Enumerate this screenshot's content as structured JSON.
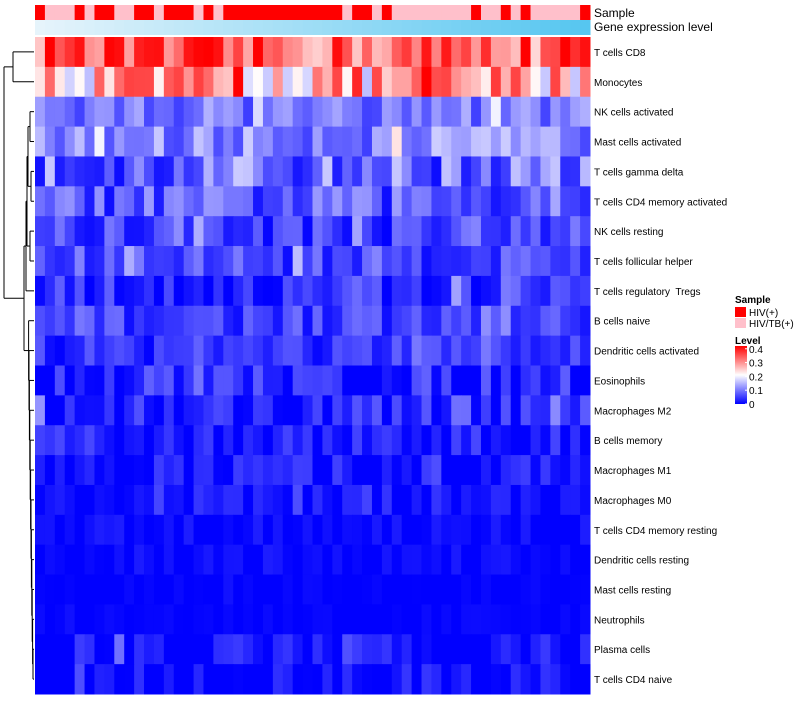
{
  "colors": {
    "hiv_pos": "#ff0000",
    "hiv_tb": "#ffc0cb",
    "level_low": "#0000ff",
    "level_mid": "#ffffff",
    "level_high": "#ff0000",
    "gene_low": "#e6f4fb",
    "gene_high": "#56c6f0",
    "dendrogram": "#000000"
  },
  "chart_data": {
    "type": "heatmap",
    "title": "",
    "annotations": {
      "sample_label": "Sample",
      "gene_label": "Gene expression level",
      "samples": [
        "HIV(+)",
        "HIV/TB(+)",
        "HIV/TB(+)",
        "HIV/TB(+)",
        "HIV(+)",
        "HIV/TB(+)",
        "HIV(+)",
        "HIV(+)",
        "HIV/TB(+)",
        "HIV/TB(+)",
        "HIV(+)",
        "HIV(+)",
        "HIV/TB(+)",
        "HIV(+)",
        "HIV(+)",
        "HIV(+)",
        "HIV/TB(+)",
        "HIV(+)",
        "HIV/TB(+)",
        "HIV(+)",
        "HIV(+)",
        "HIV(+)",
        "HIV(+)",
        "HIV(+)",
        "HIV(+)",
        "HIV(+)",
        "HIV(+)",
        "HIV(+)",
        "HIV(+)",
        "HIV(+)",
        "HIV(+)",
        "HIV/TB(+)",
        "HIV(+)",
        "HIV(+)",
        "HIV/TB(+)",
        "HIV(+)",
        "HIV/TB(+)",
        "HIV/TB(+)",
        "HIV/TB(+)",
        "HIV/TB(+)",
        "HIV/TB(+)",
        "HIV/TB(+)",
        "HIV/TB(+)",
        "HIV/TB(+)",
        "HIV(+)",
        "HIV/TB(+)",
        "HIV/TB(+)",
        "HIV(+)",
        "HIV/TB(+)",
        "HIV(+)",
        "HIV/TB(+)",
        "HIV/TB(+)",
        "HIV/TB(+)",
        "HIV/TB(+)",
        "HIV/TB(+)",
        "HIV(+)"
      ]
    },
    "legend": {
      "sample_title": "Sample",
      "sample_entries": [
        "HIV(+)",
        "HIV/TB(+)"
      ],
      "level_title": "Level",
      "level_ticks": [
        0.4,
        0.3,
        0.2,
        0.1,
        0
      ],
      "level_range": [
        0,
        0.42
      ],
      "placement": "right"
    },
    "rows": [
      "T cells CD8",
      "Monocytes",
      "NK cells activated",
      "Mast cells activated",
      "T cells gamma delta",
      "T cells CD4 memory activated",
      "NK cells resting",
      "T cells follicular helper",
      "T cells regulatory  Tregs",
      "B cells naive",
      "Dendritic cells activated",
      "Eosinophils",
      "Macrophages M2",
      "B cells memory",
      "Macrophages M1",
      "Macrophages M0",
      "T cells CD4 memory resting",
      "Dendritic cells resting",
      "Mast cells resting",
      "Neutrophils",
      "Plasma cells",
      "T cells CD4 naive"
    ],
    "row_profiles": [
      {
        "base": 0.33,
        "spread": 0.09,
        "floor": 0.16
      },
      {
        "base": 0.27,
        "spread": 0.12,
        "floor": 0.05
      },
      {
        "base": 0.1,
        "spread": 0.05,
        "floor": 0.0
      },
      {
        "base": 0.11,
        "spread": 0.06,
        "floor": 0.0
      },
      {
        "base": 0.09,
        "spread": 0.08,
        "floor": 0.0
      },
      {
        "base": 0.07,
        "spread": 0.06,
        "floor": 0.0
      },
      {
        "base": 0.05,
        "spread": 0.05,
        "floor": 0.0
      },
      {
        "base": 0.06,
        "spread": 0.05,
        "floor": 0.0
      },
      {
        "base": 0.03,
        "spread": 0.05,
        "floor": 0.0
      },
      {
        "base": 0.05,
        "spread": 0.04,
        "floor": 0.0
      },
      {
        "base": 0.04,
        "spread": 0.04,
        "floor": 0.0
      },
      {
        "base": 0.03,
        "spread": 0.05,
        "floor": 0.0
      },
      {
        "base": 0.025,
        "spread": 0.05,
        "floor": 0.0
      },
      {
        "base": 0.02,
        "spread": 0.04,
        "floor": 0.0
      },
      {
        "base": 0.015,
        "spread": 0.04,
        "floor": 0.0
      },
      {
        "base": 0.01,
        "spread": 0.035,
        "floor": 0.0
      },
      {
        "base": 0.005,
        "spread": 0.02,
        "floor": 0.0
      },
      {
        "base": 0.005,
        "spread": 0.02,
        "floor": 0.0
      },
      {
        "base": 0.0,
        "spread": 0.01,
        "floor": 0.0
      },
      {
        "base": 0.0,
        "spread": 0.01,
        "floor": 0.0
      },
      {
        "base": 0.01,
        "spread": 0.04,
        "floor": 0.0
      },
      {
        "base": 0.005,
        "spread": 0.04,
        "floor": 0.0
      }
    ]
  }
}
